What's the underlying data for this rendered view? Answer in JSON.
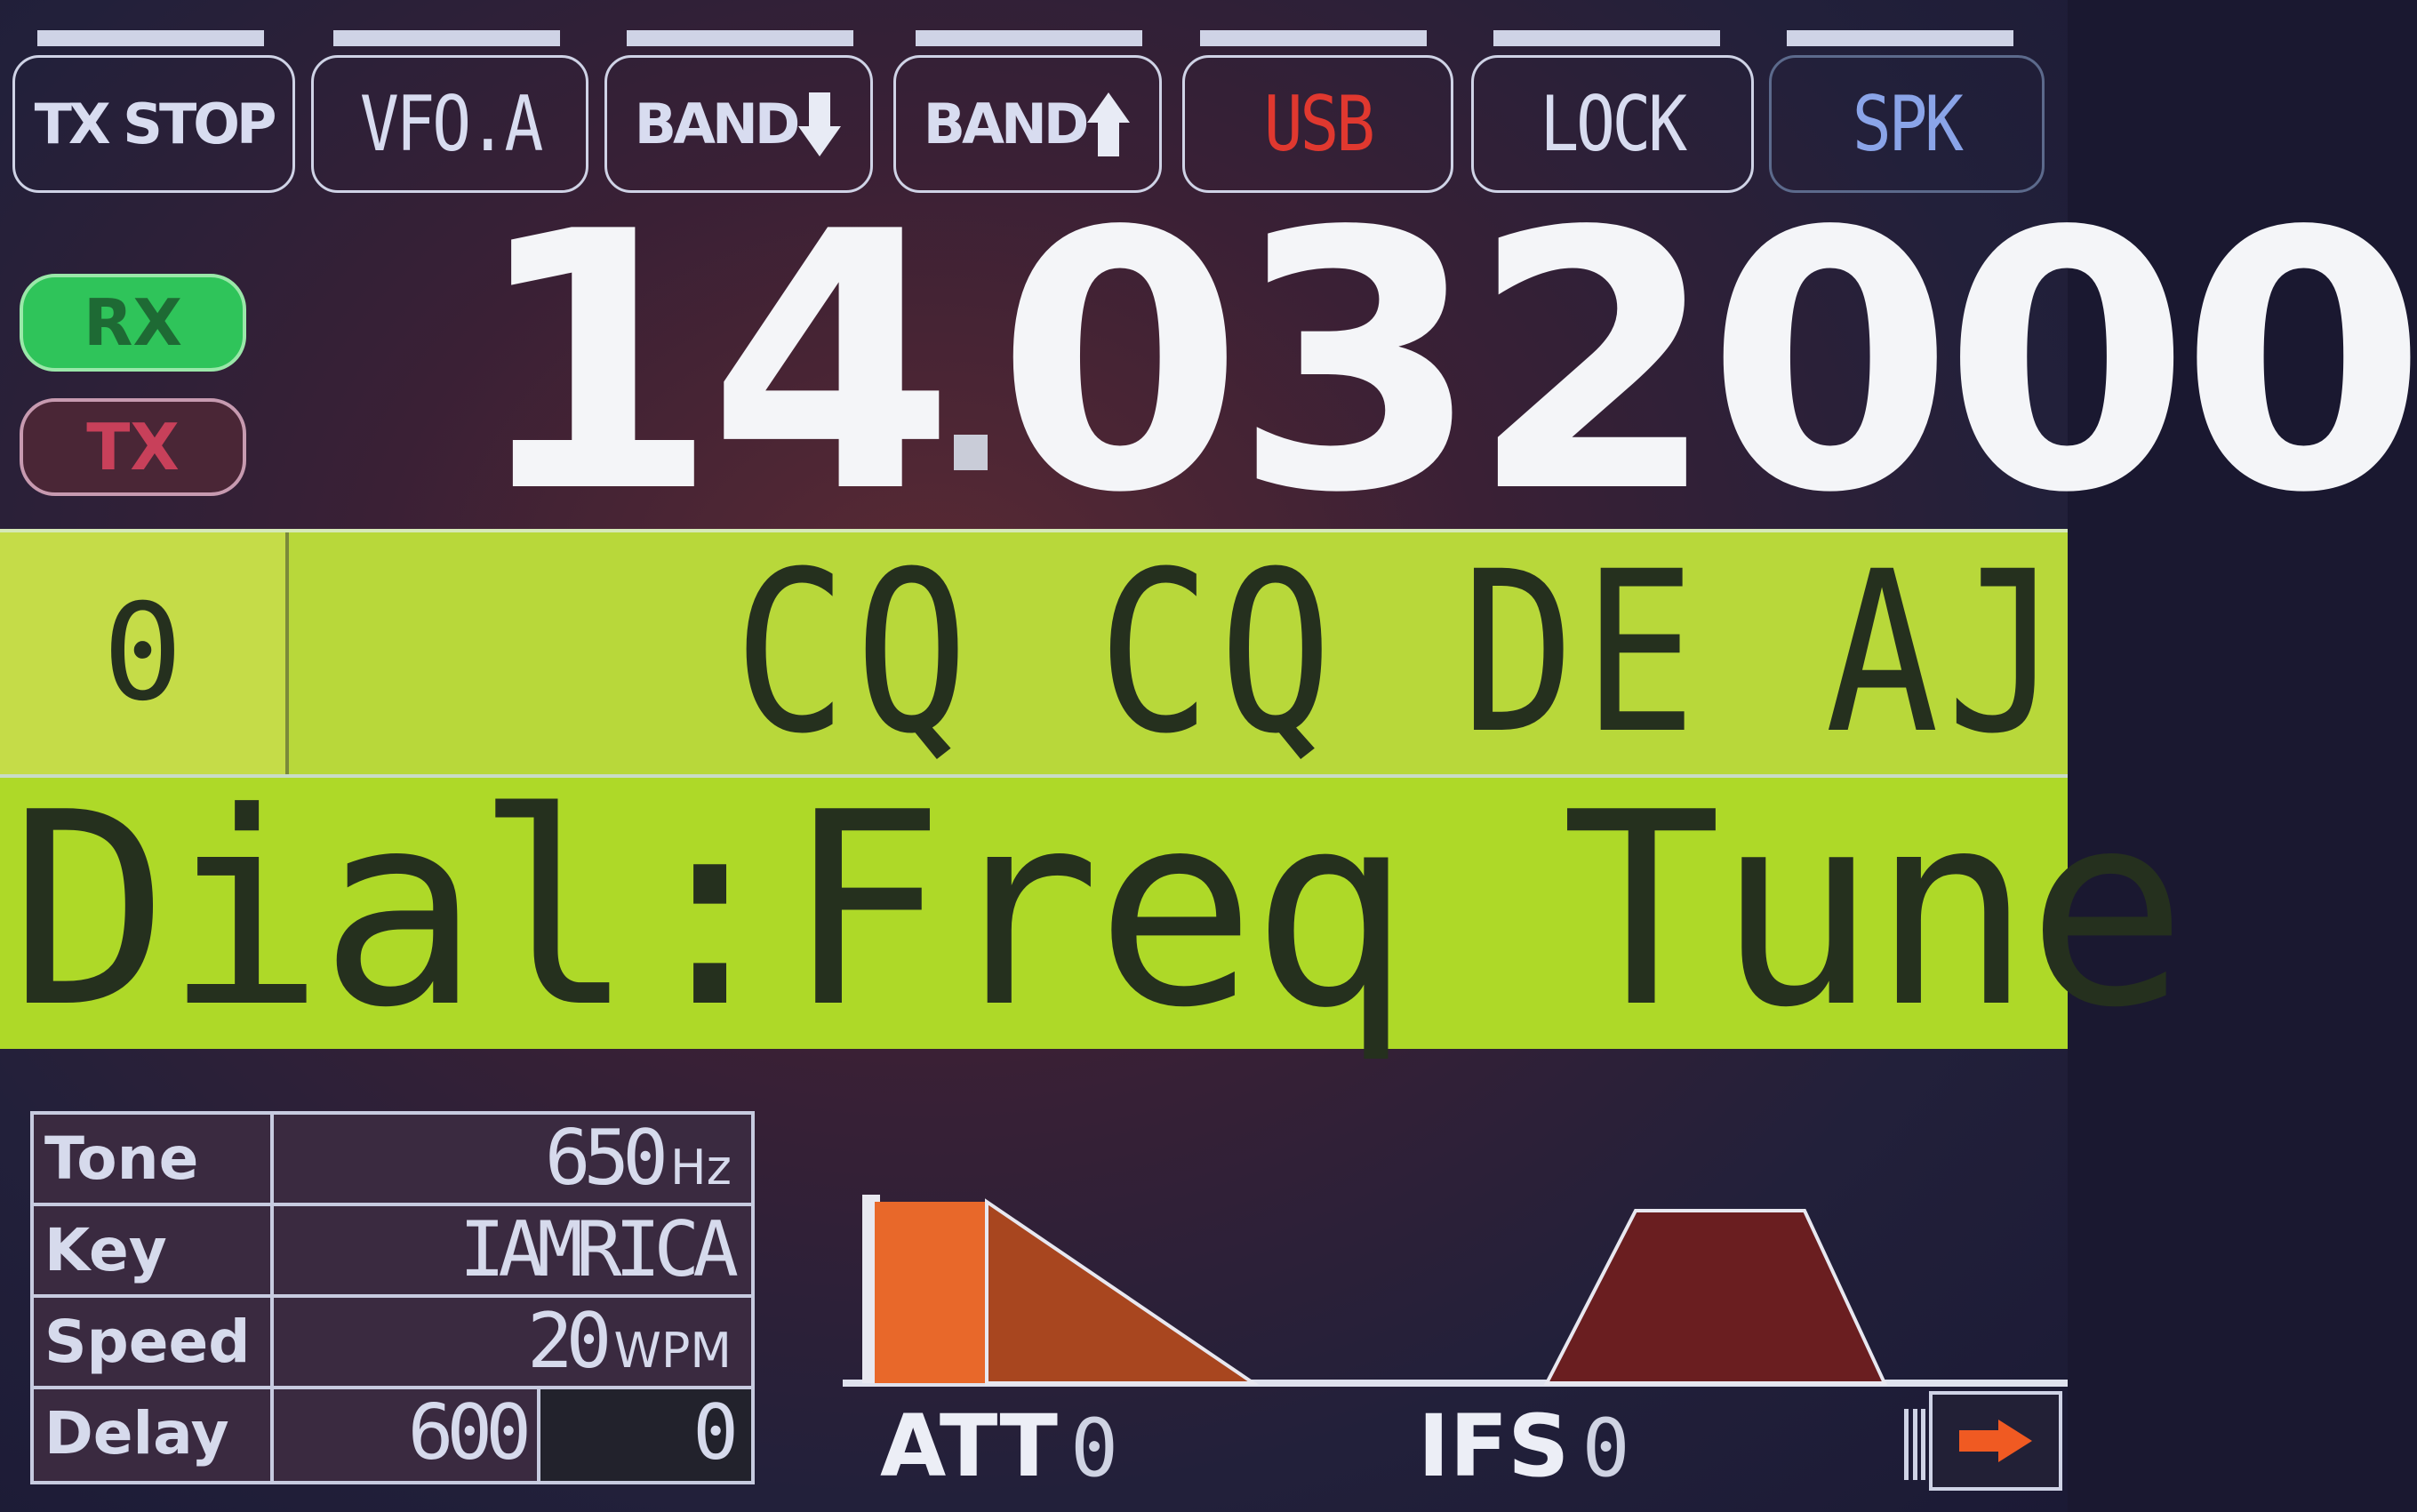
{
  "top_buttons": [
    {
      "label": "TX STOP"
    },
    {
      "label": "VFO.A"
    },
    {
      "label": "BAND"
    },
    {
      "label": "BAND"
    },
    {
      "label": "USB",
      "color": "#e0382f"
    },
    {
      "label": "LOCK"
    },
    {
      "label": "SPK",
      "color": "#8aa4e8"
    }
  ],
  "status": {
    "rx": "RX",
    "tx": "TX"
  },
  "frequency": {
    "mhz": "14",
    "khz_hz": "032000"
  },
  "decoder": {
    "wpm": "0",
    "text": "CQ CQ DE AJ"
  },
  "dial": {
    "text": "Dial:Freq Tune"
  },
  "settings": {
    "tone": {
      "label": "Tone",
      "value": "650",
      "unit": "Hz"
    },
    "key": {
      "label": "Key",
      "value": "IAMRICA"
    },
    "speed": {
      "label": "Speed",
      "value": "20",
      "unit": "WPM"
    },
    "delay": {
      "label": "Delay",
      "value": "600",
      "value2": "0"
    }
  },
  "filters": {
    "att": {
      "label": "ATT",
      "value": "0"
    },
    "ifs": {
      "label": "IFS",
      "value": "0"
    }
  },
  "colors": {
    "accent_green": "#aed928",
    "rx_green": "#2fc45a",
    "tx_red": "#c8405a",
    "att_orange": "#e8682a",
    "ifs_brown": "#6a1e20"
  }
}
